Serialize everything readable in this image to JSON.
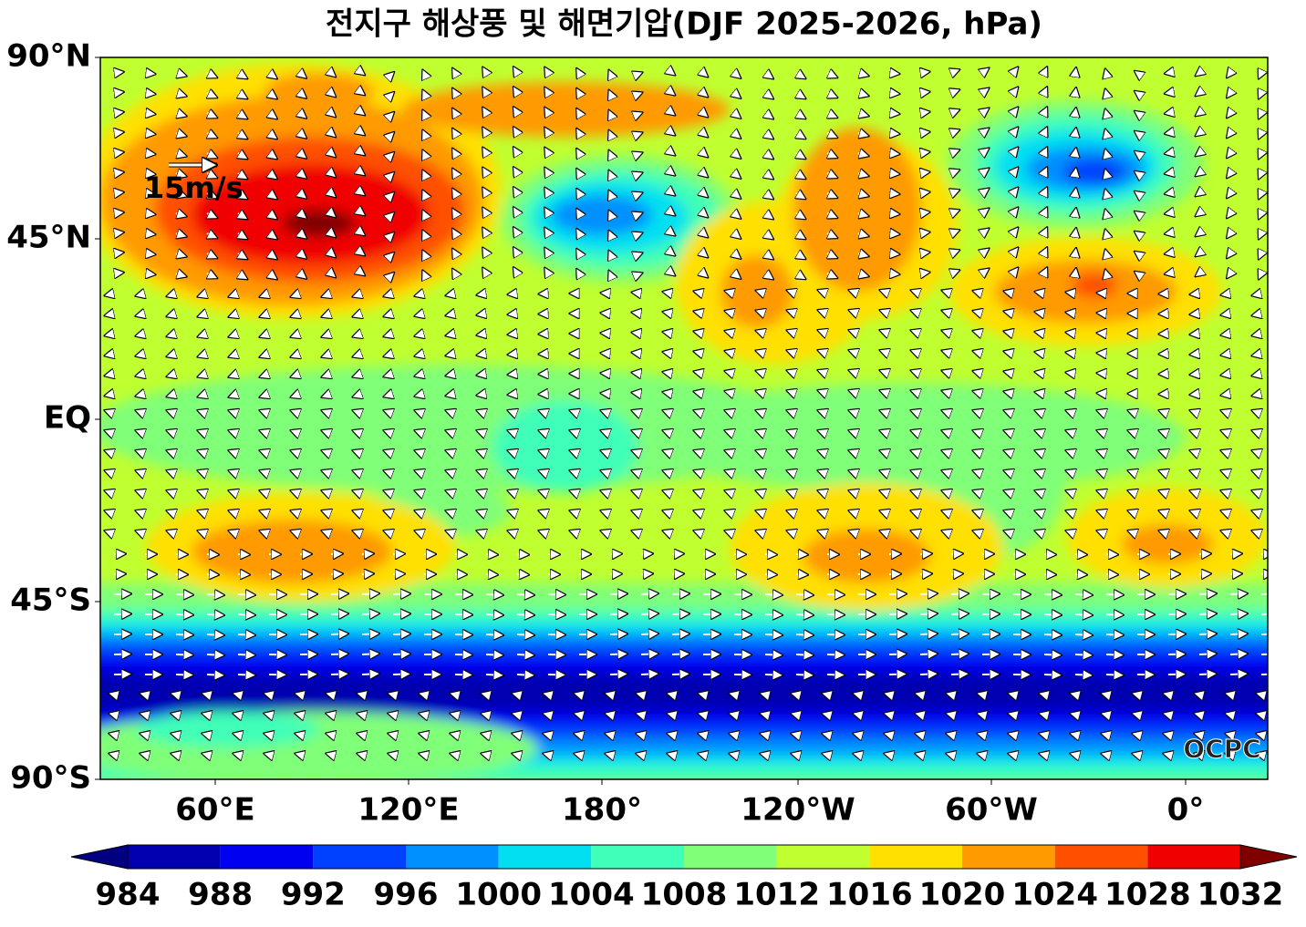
{
  "title": "전지구 해상풍 및 해면기압(DJF 2025-2026, hPa)",
  "map": {
    "lat_labels": [
      "90°N",
      "45°N",
      "EQ",
      "45°S",
      "90°S"
    ],
    "lon_labels": [
      "60°E",
      "120°E",
      "180°",
      "120°W",
      "60°W",
      "0°"
    ],
    "reference_vector": "15m/s",
    "credit": "OCPC"
  },
  "colorbar": {
    "ticks": [
      984,
      988,
      992,
      996,
      1000,
      1004,
      1008,
      1012,
      1016,
      1020,
      1024,
      1028,
      1032
    ],
    "colors": [
      "#0000b0",
      "#0000f0",
      "#0040ff",
      "#0090ff",
      "#00e0f0",
      "#40ffb8",
      "#80ff78",
      "#c0ff30",
      "#ffe000",
      "#ff9a00",
      "#ff5000",
      "#f00000"
    ],
    "under_color": "#000080",
    "over_color": "#800000"
  }
}
